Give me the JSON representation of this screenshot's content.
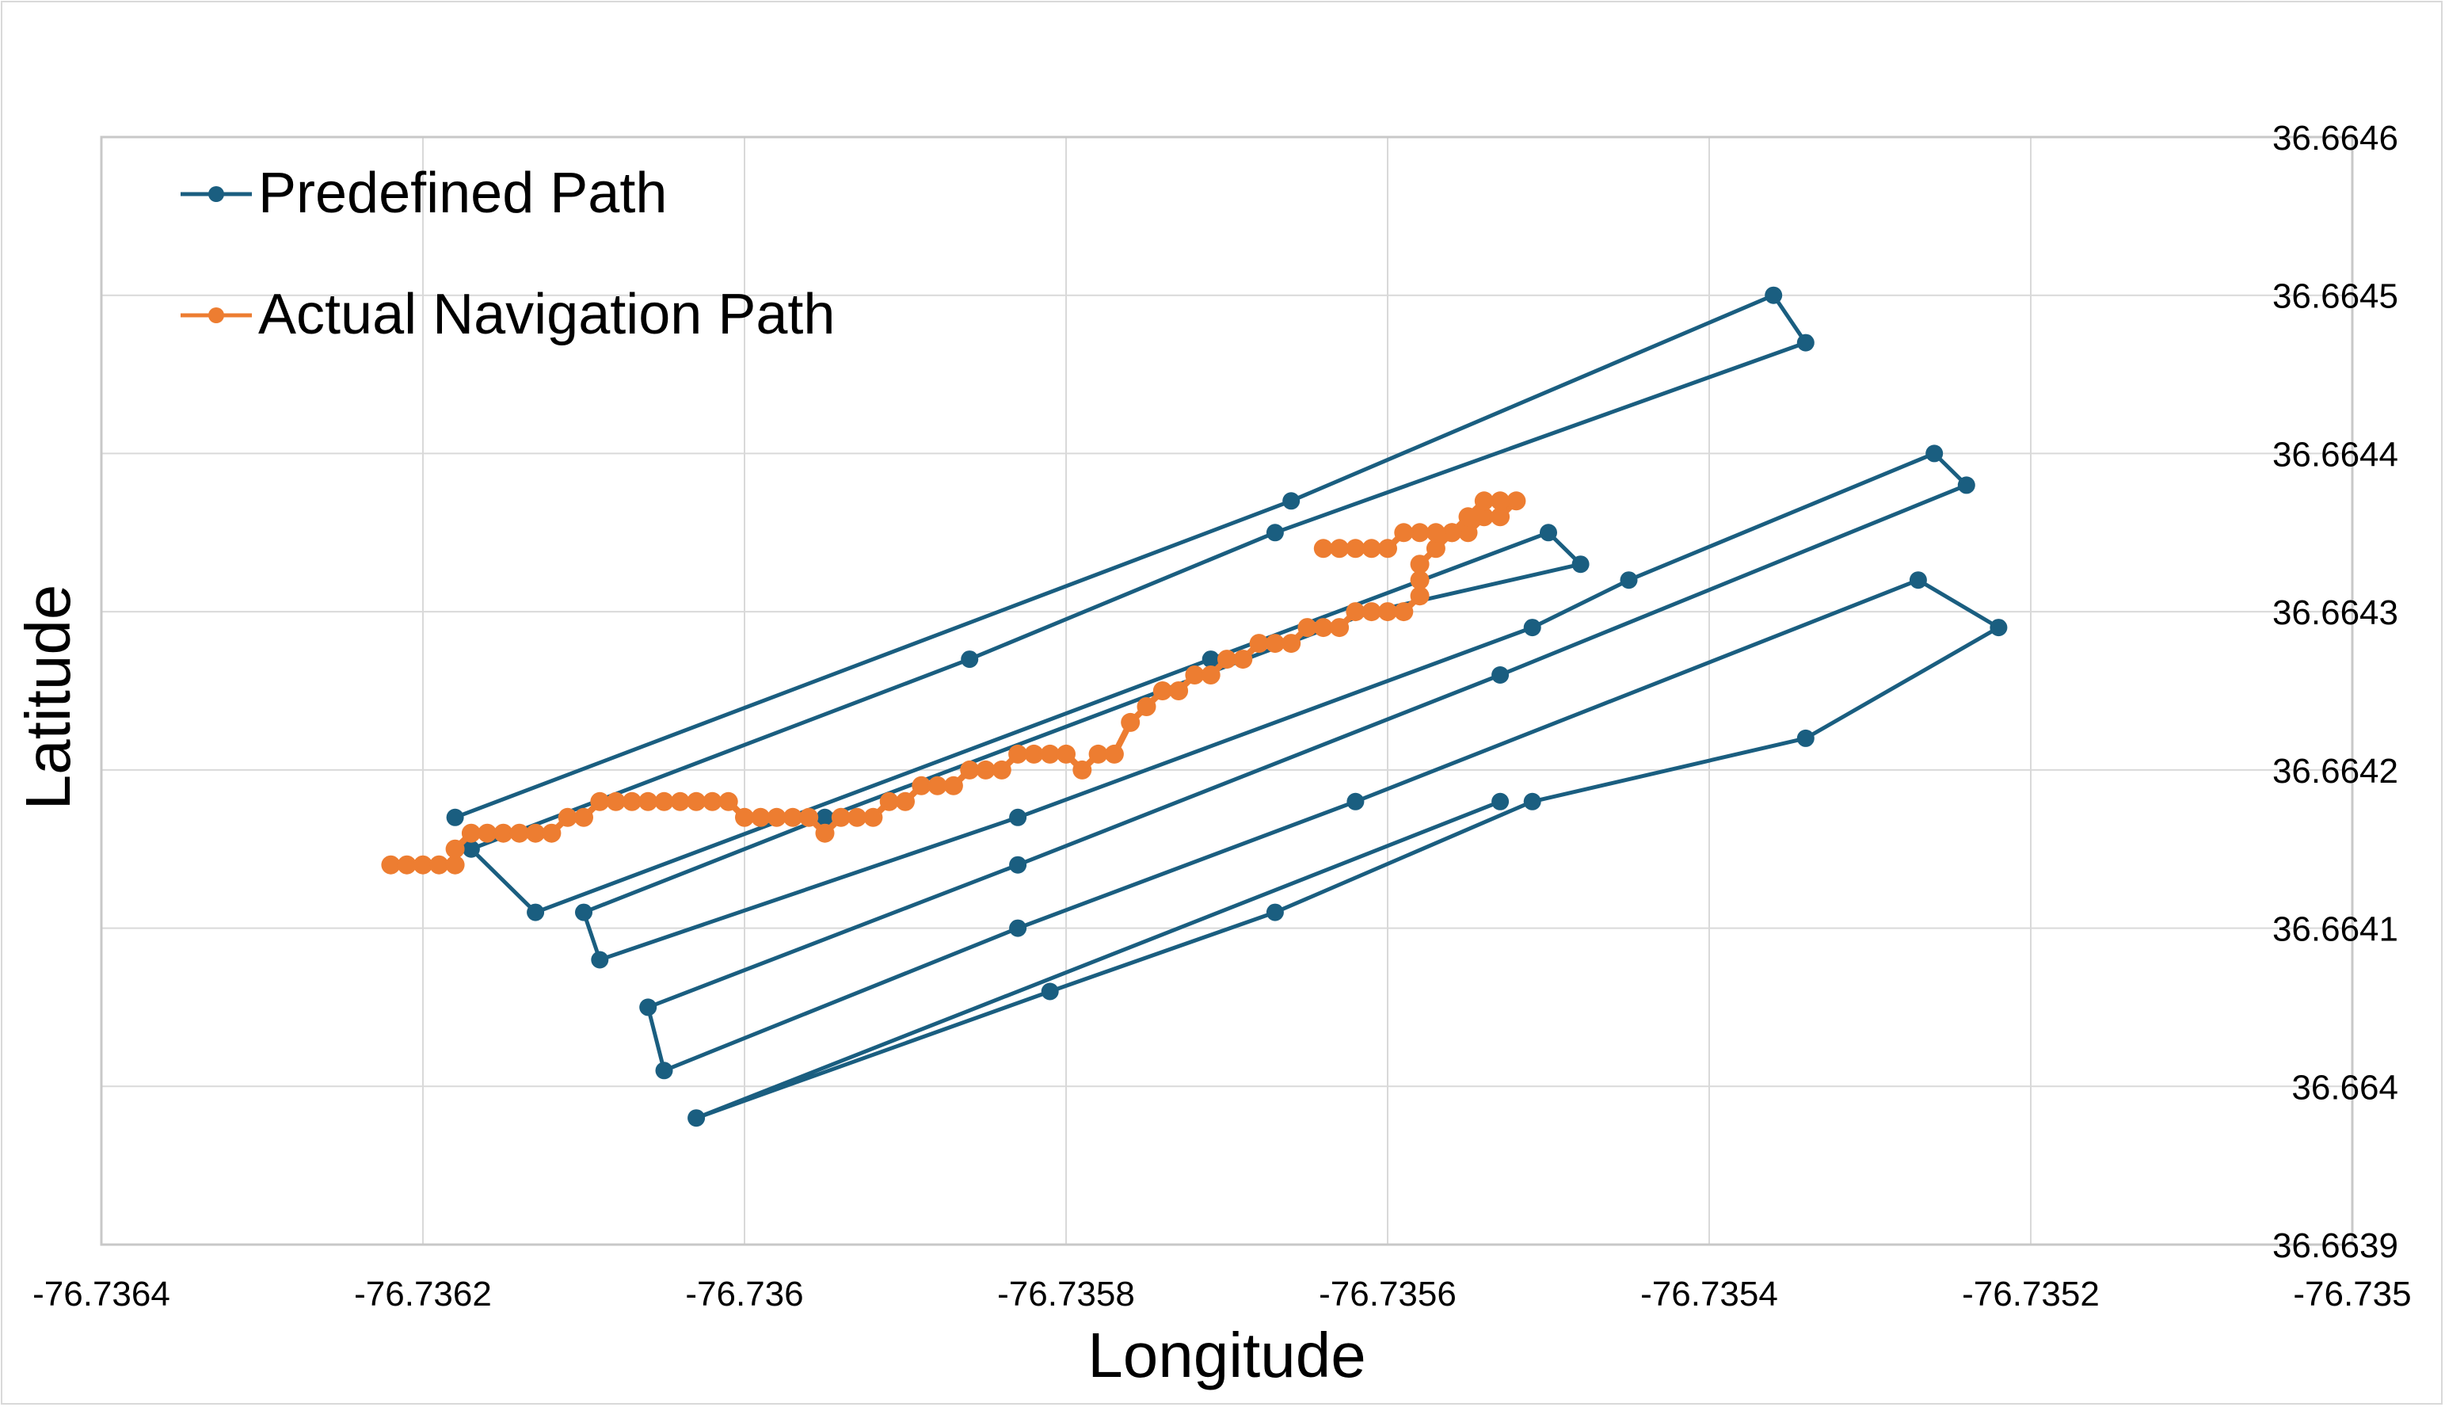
{
  "chart_data": {
    "type": "scatter",
    "title": "",
    "xlabel": "Longitude",
    "ylabel": "Latitude",
    "xlim": [
      -76.7364,
      -76.735
    ],
    "ylim": [
      36.6639,
      36.6646
    ],
    "x_ticks": [
      "-76.7364",
      "-76.7362",
      "-76.736",
      "-76.7358",
      "-76.7356",
      "-76.7354",
      "-76.7352",
      "-76.735"
    ],
    "y_ticks": [
      "36.6639",
      "36.664",
      "36.6641",
      "36.6642",
      "36.6643",
      "36.6644",
      "36.6645",
      "36.6646"
    ],
    "y_axis_side": "right",
    "grid": true,
    "legend_position": "top-left",
    "series": [
      {
        "name": "Predefined Path",
        "color": "#1a5e80",
        "points": [
          [
            -76.73618,
            36.66417
          ],
          [
            -76.73566,
            36.66437
          ],
          [
            -76.73536,
            36.6645
          ],
          [
            -76.73534,
            36.66447
          ],
          [
            -76.73567,
            36.66435
          ],
          [
            -76.73586,
            36.66427
          ],
          [
            -76.73617,
            36.66415
          ],
          [
            -76.73613,
            36.66411
          ],
          [
            -76.73571,
            36.66427
          ],
          [
            -76.7355,
            36.66435
          ],
          [
            -76.73548,
            36.66433
          ],
          [
            -76.73561,
            36.6643
          ],
          [
            -76.73595,
            36.66417
          ],
          [
            -76.7361,
            36.66411
          ],
          [
            -76.73609,
            36.66408
          ],
          [
            -76.73583,
            36.66417
          ],
          [
            -76.73551,
            36.66429
          ],
          [
            -76.73545,
            36.66432
          ],
          [
            -76.73526,
            36.6644
          ],
          [
            -76.73524,
            36.66438
          ],
          [
            -76.73553,
            36.66426
          ],
          [
            -76.73583,
            36.66414
          ],
          [
            -76.73606,
            36.66405
          ],
          [
            -76.73605,
            36.66401
          ],
          [
            -76.73583,
            36.6641
          ],
          [
            -76.73562,
            36.66418
          ],
          [
            -76.73527,
            36.66432
          ],
          [
            -76.73522,
            36.66429
          ],
          [
            -76.73534,
            36.66422
          ],
          [
            -76.73551,
            36.66418
          ],
          [
            -76.73567,
            36.66411
          ],
          [
            -76.73581,
            36.66406
          ],
          [
            -76.73603,
            36.66398
          ],
          [
            -76.73553,
            36.66418
          ]
        ]
      },
      {
        "name": "Actual Navigation Path",
        "color": "#ed7d31",
        "points": [
          [
            -76.73622,
            36.66414
          ],
          [
            -76.73621,
            36.66414
          ],
          [
            -76.7362,
            36.66414
          ],
          [
            -76.73619,
            36.66414
          ],
          [
            -76.73618,
            36.66414
          ],
          [
            -76.73618,
            36.66415
          ],
          [
            -76.73617,
            36.66416
          ],
          [
            -76.73616,
            36.66416
          ],
          [
            -76.73615,
            36.66416
          ],
          [
            -76.73614,
            36.66416
          ],
          [
            -76.73613,
            36.66416
          ],
          [
            -76.73612,
            36.66416
          ],
          [
            -76.73611,
            36.66417
          ],
          [
            -76.7361,
            36.66417
          ],
          [
            -76.73609,
            36.66418
          ],
          [
            -76.73608,
            36.66418
          ],
          [
            -76.73607,
            36.66418
          ],
          [
            -76.73606,
            36.66418
          ],
          [
            -76.73605,
            36.66418
          ],
          [
            -76.73604,
            36.66418
          ],
          [
            -76.73603,
            36.66418
          ],
          [
            -76.73602,
            36.66418
          ],
          [
            -76.73601,
            36.66418
          ],
          [
            -76.736,
            36.66417
          ],
          [
            -76.73599,
            36.66417
          ],
          [
            -76.73598,
            36.66417
          ],
          [
            -76.73597,
            36.66417
          ],
          [
            -76.73596,
            36.66417
          ],
          [
            -76.73595,
            36.66416
          ],
          [
            -76.73594,
            36.66417
          ],
          [
            -76.73593,
            36.66417
          ],
          [
            -76.73592,
            36.66417
          ],
          [
            -76.73591,
            36.66418
          ],
          [
            -76.7359,
            36.66418
          ],
          [
            -76.73589,
            36.66419
          ],
          [
            -76.73588,
            36.66419
          ],
          [
            -76.73587,
            36.66419
          ],
          [
            -76.73586,
            36.6642
          ],
          [
            -76.73585,
            36.6642
          ],
          [
            -76.73584,
            36.6642
          ],
          [
            -76.73583,
            36.66421
          ],
          [
            -76.73582,
            36.66421
          ],
          [
            -76.73581,
            36.66421
          ],
          [
            -76.7358,
            36.66421
          ],
          [
            -76.73579,
            36.6642
          ],
          [
            -76.73578,
            36.66421
          ],
          [
            -76.73577,
            36.66421
          ],
          [
            -76.73576,
            36.66423
          ],
          [
            -76.73575,
            36.66424
          ],
          [
            -76.73574,
            36.66425
          ],
          [
            -76.73573,
            36.66425
          ],
          [
            -76.73572,
            36.66426
          ],
          [
            -76.73571,
            36.66426
          ],
          [
            -76.7357,
            36.66427
          ],
          [
            -76.73569,
            36.66427
          ],
          [
            -76.73568,
            36.66428
          ],
          [
            -76.73567,
            36.66428
          ],
          [
            -76.73566,
            36.66428
          ],
          [
            -76.73565,
            36.66429
          ],
          [
            -76.73564,
            36.66429
          ],
          [
            -76.73563,
            36.66429
          ],
          [
            -76.73562,
            36.6643
          ],
          [
            -76.73561,
            36.6643
          ],
          [
            -76.7356,
            36.6643
          ],
          [
            -76.73559,
            36.6643
          ],
          [
            -76.73558,
            36.66431
          ],
          [
            -76.73558,
            36.66432
          ],
          [
            -76.73558,
            36.66433
          ],
          [
            -76.73557,
            36.66434
          ],
          [
            -76.73556,
            36.66435
          ],
          [
            -76.73555,
            36.66435
          ],
          [
            -76.73554,
            36.66436
          ],
          [
            -76.73553,
            36.66436
          ],
          [
            -76.73552,
            36.66437
          ],
          [
            -76.73553,
            36.66437
          ],
          [
            -76.73554,
            36.66437
          ],
          [
            -76.73555,
            36.66436
          ],
          [
            -76.73556,
            36.66435
          ],
          [
            -76.73557,
            36.66435
          ],
          [
            -76.73558,
            36.66435
          ],
          [
            -76.73559,
            36.66435
          ],
          [
            -76.7356,
            36.66434
          ],
          [
            -76.73561,
            36.66434
          ],
          [
            -76.73562,
            36.66434
          ],
          [
            -76.73563,
            36.66434
          ],
          [
            -76.73564,
            36.66434
          ]
        ]
      }
    ]
  },
  "legend": [
    {
      "label": "Predefined Path",
      "color": "#1a5e80"
    },
    {
      "label": "Actual Navigation Path",
      "color": "#ed7d31"
    }
  ]
}
